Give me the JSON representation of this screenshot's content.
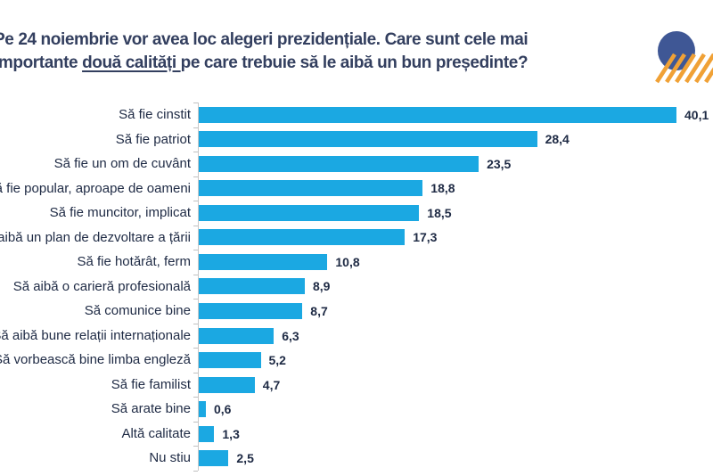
{
  "title": {
    "line1": "Pe 24 noiembrie vor avea loc alegeri prezidențiale. Care sunt cele mai",
    "line2_pre": "importante ",
    "line2_underlined": "două calități ",
    "line2_post": "pe care trebuie să le aibă un bun președinte?",
    "color": "#333F5F"
  },
  "logo": {
    "circle_color": "#3F5795",
    "stripe_color": "#F0A136"
  },
  "chart_data": {
    "type": "bar",
    "orientation": "horizontal",
    "title": "",
    "xlabel": "",
    "ylabel": "",
    "grid": false,
    "legend_position": "none",
    "xlim": [
      0,
      42
    ],
    "bar_color": "#1BA8E2",
    "axis_color": "#C8C8C8",
    "label_color": "#1E2A44",
    "categories": [
      "Să fie cinstit",
      "Să fie patriot",
      "Să fie un om de cuvânt",
      "Să fie popular, aproape de oameni",
      "Să fie muncitor, implicat",
      "Să aibă un plan de dezvoltare a țării",
      "Să fie hotărât, ferm",
      "Să aibă o carieră profesională",
      "Să comunice bine",
      "Să aibă bune relații internaționale",
      "Să vorbească bine limba engleză",
      "Să fie familist",
      "Să arate bine",
      "Altă calitate",
      "Nu stiu"
    ],
    "values": [
      40.1,
      28.4,
      23.5,
      18.8,
      18.5,
      17.3,
      10.8,
      8.9,
      8.7,
      6.3,
      5.2,
      4.7,
      0.6,
      1.3,
      2.5
    ],
    "value_labels": [
      "40,1",
      "28,4",
      "23,5",
      "18,8",
      "18,5",
      "17,3",
      "10,8",
      "8,9",
      "8,7",
      "6,3",
      "5,2",
      "4,7",
      "0,6",
      "1,3",
      "2,5"
    ]
  }
}
